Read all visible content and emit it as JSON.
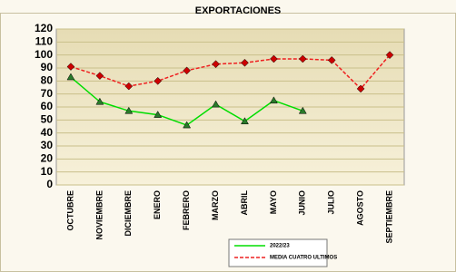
{
  "chart_data": {
    "type": "line",
    "title": "EXPORTACIONES",
    "categories": [
      "OCTUBRE",
      "NOVIEMBRE",
      "DICIEMBRE",
      "ENERO",
      "FEBRERO",
      "MARZO",
      "ABRIL",
      "MAYO",
      "JUNIO",
      "JULIO",
      "AGOSTO",
      "SEPTIEMBRE"
    ],
    "series": [
      {
        "name": "2022/23",
        "color": "#00dd00",
        "values": [
          83,
          64,
          57,
          54,
          46,
          62,
          49,
          65,
          57,
          null,
          null,
          null
        ]
      },
      {
        "name": "MEDIA CUATRO ULTIMOS",
        "color": "#ee2020",
        "values": [
          91,
          84,
          76,
          80,
          88,
          93,
          94,
          97,
          97,
          96,
          74,
          100
        ]
      }
    ],
    "ylim": [
      0,
      120
    ],
    "yticks": [
      0,
      10,
      20,
      30,
      40,
      50,
      60,
      70,
      80,
      90,
      100,
      110,
      120
    ],
    "grid": true
  }
}
